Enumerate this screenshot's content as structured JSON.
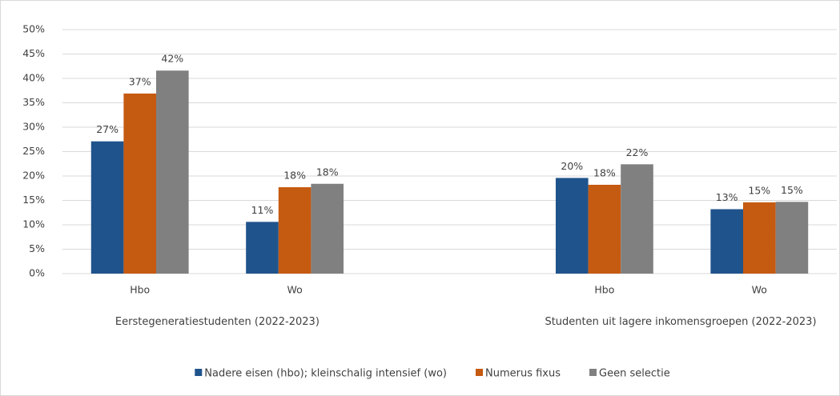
{
  "chart_data": {
    "type": "bar",
    "groups": [
      {
        "label": "Eerstegeneratiestudenten (2022-2023)",
        "categories": [
          "Hbo",
          "Wo"
        ]
      },
      {
        "label": "Studenten uit lagere inkomensgroepen (2022-2023)",
        "categories": [
          "Hbo",
          "Wo"
        ]
      }
    ],
    "series": [
      {
        "name": "Nadere eisen (hbo); kleinschalig intensief (wo)",
        "color": "#1f538c",
        "values": [
          27.1,
          10.6,
          19.6,
          13.2
        ],
        "value_labels": [
          "27%",
          "11%",
          "20%",
          "13%"
        ]
      },
      {
        "name": "Numerus fixus",
        "color": "#c55a11",
        "values": [
          36.9,
          17.7,
          18.2,
          14.6
        ],
        "value_labels": [
          "37%",
          "18%",
          "18%",
          "15%"
        ]
      },
      {
        "name": "Geen selectie",
        "color": "#808080",
        "values": [
          41.6,
          18.4,
          22.4,
          14.7
        ],
        "value_labels": [
          "42%",
          "18%",
          "22%",
          "15%"
        ]
      }
    ],
    "ylim": [
      0,
      50
    ],
    "yticks": [
      {
        "value": 0,
        "label": "0%"
      },
      {
        "value": 5,
        "label": "5%"
      },
      {
        "value": 10,
        "label": "10%"
      },
      {
        "value": 15,
        "label": "15%"
      },
      {
        "value": 20,
        "label": "20%"
      },
      {
        "value": 25,
        "label": "25%"
      },
      {
        "value": 30,
        "label": "30%"
      },
      {
        "value": 35,
        "label": "35%"
      },
      {
        "value": 40,
        "label": "40%"
      },
      {
        "value": 45,
        "label": "45%"
      },
      {
        "value": 50,
        "label": "50%"
      }
    ],
    "grid": true,
    "legend": "bottom"
  }
}
